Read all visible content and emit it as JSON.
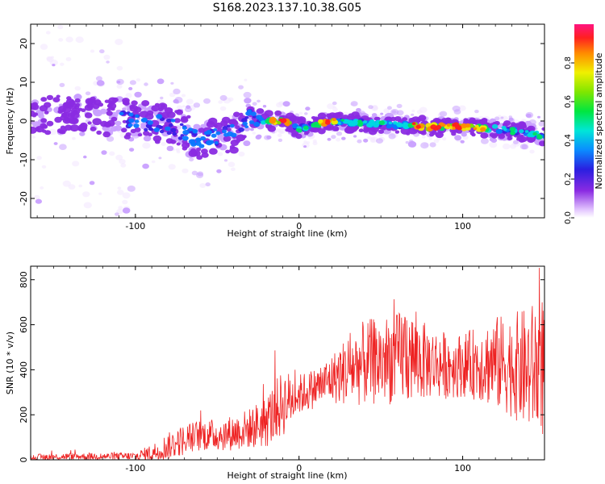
{
  "figure": {
    "title": "S168.2023.137.10.38.G05"
  },
  "chart_data": [
    {
      "type": "heatmap",
      "title": "S168.2023.137.10.38.G05",
      "xlabel": "Height of straight line (km)",
      "ylabel": "Frequency (Hz)",
      "xlim": [
        -164,
        150
      ],
      "ylim": [
        -25,
        25
      ],
      "xticks": [
        -100,
        0,
        100
      ],
      "xtick_labels": [
        "-100",
        "0",
        "100"
      ],
      "yticks": [
        -20,
        -10,
        0,
        10,
        20
      ],
      "ytick_labels": [
        "-20",
        "-10",
        "0",
        "10",
        "20"
      ],
      "colorbar": {
        "label": "Normalized spectral amplitude",
        "range": [
          0,
          1
        ],
        "ticks": [
          0.0,
          0.2,
          0.4,
          0.6,
          0.8
        ],
        "tick_labels": [
          "0.0",
          "0.2",
          "0.4",
          "0.6",
          "0.8"
        ],
        "colormap": "rainbow"
      },
      "ridge": {
        "description": "dominant Doppler frequency track",
        "x": [
          -160,
          -140,
          -120,
          -100,
          -80,
          -60,
          -40,
          -30,
          -20,
          -10,
          0,
          10,
          20,
          40,
          60,
          80,
          100,
          120,
          140,
          150
        ],
        "freq": [
          2,
          2,
          1,
          0,
          -1,
          -5,
          -3,
          1,
          0,
          0,
          -2,
          -1,
          0,
          -0.5,
          -1,
          -1.5,
          -1.5,
          -2,
          -3,
          -4
        ]
      }
    },
    {
      "type": "line",
      "xlabel": "Height of straight line (km)",
      "ylabel": "SNR (10 * v/v)",
      "xlim": [
        -164,
        150
      ],
      "ylim": [
        0,
        860
      ],
      "xticks": [
        -100,
        0,
        100
      ],
      "xtick_labels": [
        "-100",
        "0",
        "100"
      ],
      "yticks": [
        0,
        200,
        400,
        600,
        800
      ],
      "ytick_labels": [
        "0",
        "200",
        "400",
        "600",
        "800"
      ],
      "color": "#ee2222",
      "envelope": {
        "x": [
          -164,
          -140,
          -120,
          -100,
          -90,
          -80,
          -70,
          -60,
          -50,
          -40,
          -30,
          -20,
          -10,
          0,
          10,
          20,
          30,
          40,
          50,
          60,
          65,
          70,
          80,
          90,
          100,
          110,
          120,
          130,
          140,
          150
        ],
        "mean": [
          10,
          15,
          15,
          15,
          30,
          60,
          90,
          110,
          110,
          120,
          140,
          170,
          250,
          290,
          320,
          360,
          400,
          430,
          440,
          450,
          480,
          450,
          430,
          420,
          420,
          430,
          430,
          420,
          400,
          420
        ],
        "spread": [
          15,
          15,
          15,
          20,
          40,
          60,
          70,
          70,
          70,
          80,
          90,
          120,
          150,
          90,
          90,
          110,
          160,
          190,
          200,
          200,
          240,
          200,
          160,
          150,
          140,
          170,
          210,
          230,
          280,
          330
        ]
      }
    }
  ]
}
